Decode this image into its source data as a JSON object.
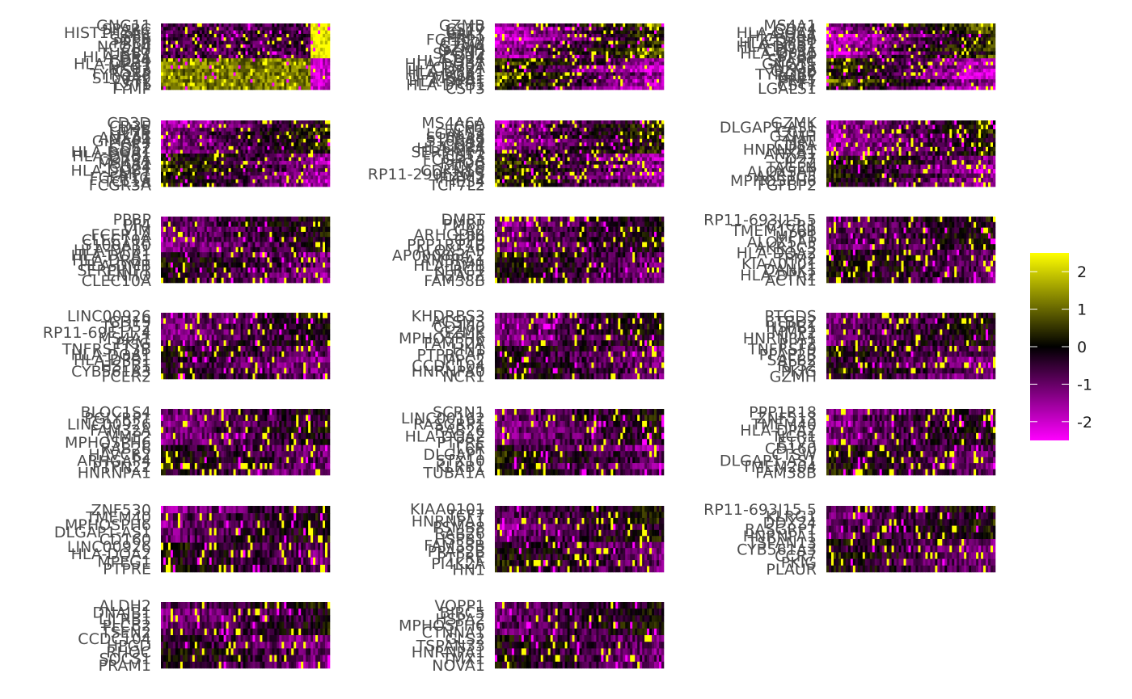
{
  "chart_data": {
    "type": "heatmap",
    "title": "",
    "xlabel": "",
    "ylabel": "",
    "color_scale": {
      "colors": [
        "#FF00FF",
        "#000000",
        "#FFFF00"
      ],
      "limits": [
        -2.5,
        2.5
      ],
      "breaks": [
        2,
        1,
        0,
        -1,
        -2
      ],
      "break_labels": [
        "2",
        "1",
        "0",
        "-1",
        "-2"
      ]
    },
    "panel_grid": {
      "rows": 7,
      "cols": 3,
      "count": 20
    },
    "panels": [
      {
        "id": "PC1",
        "genes": [
          "GNG11",
          "SPARC",
          "HIST1H2AC",
          "PF4",
          "SDPR",
          "PPBP",
          "NCOA4",
          "CLU",
          "TUBB1",
          "HLA-DRA",
          "CD74",
          "HLA-DPB1",
          "NKG7",
          "CST3",
          "TYROBP",
          "S100A9",
          "FTL",
          "LST1",
          "TYMP"
        ]
      },
      {
        "id": "PC2",
        "genes": [
          "GZMB",
          "CST7",
          "GNLY",
          "PRF1",
          "FGFBP2",
          "CTSW",
          "GZMA",
          "GZMH",
          "SPON2",
          "CD74",
          "HLA-DRA",
          "HLA-DQB1",
          "CD79A",
          "HLA-DPB1",
          "HLA-DQA1",
          "MS4A1",
          "HLA-DPA1",
          "HLA-DRB1",
          "CST3"
        ]
      },
      {
        "id": "PC3",
        "genes": [
          "MS4A1",
          "CD74",
          "HLA-DQA1",
          "HLA-DRA",
          "CD79B",
          "HLA-DPB1",
          "HLA-DQB1",
          "CD79A",
          "HLA-DPA1",
          "PPBP",
          "SPARC",
          "GNG11",
          "NKG7",
          "GZMB",
          "TYROBP",
          "GNLY",
          "PRF1",
          "CST7",
          "LGALS1"
        ]
      },
      {
        "id": "PC4",
        "genes": [
          "CD3D",
          "CD3E",
          "LDHB",
          "IL7R",
          "ANXA1",
          "GIMAP4",
          "CCR7",
          "CD52",
          "HLA-DQA1",
          "HLA-DRB1",
          "CD79A",
          "MS4A1",
          "CD74",
          "HLA-DQB1",
          "AIF1",
          "FCER1G",
          "TCL1A",
          "FCGR3A"
        ]
      },
      {
        "id": "PC5",
        "genes": [
          "MS4A6A",
          "CFD",
          "FCN1",
          "LGALS2",
          "S100A8",
          "S100A9",
          "CD14",
          "HLA-DRA",
          "SERPINF1",
          "CST3",
          "FCGR3A",
          "RHOC",
          "CKB",
          "CDKN1C",
          "RP11-290F20.3",
          "IFITM2",
          "HES4",
          "TCF7L2"
        ]
      },
      {
        "id": "PC6",
        "genes": [
          "GZMK",
          "DLGAP1-AS1",
          "CCL5",
          "GZMH",
          "MAL",
          "CD8A",
          "HNRNPA1",
          "ANXA1",
          "CD27",
          "IL32",
          "TAGLN",
          "ALOX5AP",
          "AKR1C3",
          "MPHOSPH6",
          "FGFBP2"
        ]
      },
      {
        "id": "PC7",
        "genes": [
          "PPBP",
          "PF4",
          "VIM",
          "FCER1A",
          "CLEC10A",
          "S100A10",
          "HLA-DPB1",
          "HLA-DQA1",
          "HLA-DRB1",
          "HLA-DMB",
          "SERPINF1",
          "ENHO",
          "CLEC10A"
        ]
      },
      {
        "id": "PC8",
        "genes": [
          "DMRT",
          "PMBP",
          "CA2",
          "ARHGDIB",
          "GP9",
          "PPP1R14B",
          "ALOX5AP",
          "AP000864.2",
          "AMBRA1",
          "HLA-DMB",
          "KLRG1",
          "H2AFZ",
          "FAM38B"
        ]
      },
      {
        "id": "PC9",
        "genes": [
          "RP11-693J15.5",
          "CYCR1",
          "TMEM176B",
          "MPP1",
          "ALOX5AP",
          "AKR1C3",
          "HLA-DQA2",
          "TPM2",
          "KIAA0101",
          "DANK1",
          "HLA-DPA2",
          "ACTN1"
        ]
      },
      {
        "id": "PC10",
        "genes": [
          "LINC00926",
          "CD19",
          "TPD52",
          "RP11-69E11.4",
          "MS4A1",
          "PKIG",
          "TNFRSF13B",
          "HLA-DQA1",
          "HLA-DPB1",
          "HSPB1",
          "CYB561A3",
          "FCER2"
        ]
      },
      {
        "id": "PC11",
        "genes": [
          "KHDRBS3",
          "ACSM3",
          "CD160",
          "GZMK",
          "MPHOSPH6",
          "FAM32A",
          "HN1",
          "PTPRCAP",
          "MPC2",
          "CCDC104",
          "HNRNPA0",
          "NCR1"
        ]
      },
      {
        "id": "PC12",
        "genes": [
          "PTGDS",
          "BTBD2",
          "HSPB1",
          "MMP2",
          "HNRNPA1",
          "PPT2",
          "TNFRSF9",
          "PPAP2B",
          "SAFB2",
          "RPS2",
          "PKIG",
          "GZMH"
        ]
      },
      {
        "id": "PC13",
        "genes": [
          "BLOC1S4",
          "PGLYRP1",
          "LINC00926",
          "FAM32A",
          "MMP2",
          "MPHOSPH6",
          "RAB26",
          "HAVCR2",
          "ARHGAP4",
          "PTPN22",
          "HNRNPA1"
        ]
      },
      {
        "id": "PC14",
        "genes": [
          "SCRN1",
          "LINC00162",
          "RASGRP1",
          "RAB26",
          "HLA-DQA2",
          "PTPRE",
          "IL6R",
          "DLGAP1",
          "STX10",
          "KLRB1",
          "TUBA1A"
        ]
      },
      {
        "id": "PC15",
        "genes": [
          "PPP1R18",
          "ZNF513",
          "TMEM40",
          "HLA-DPA2",
          "NCR1",
          "ETV5",
          "CD160",
          "CTSW",
          "DLGAP1-AS1",
          "TMEM204",
          "FAM38B"
        ]
      },
      {
        "id": "PC16",
        "genes": [
          "ZNF530",
          "TMEM40",
          "MPHOSPH6",
          "DLGAP1-AS1",
          "CD160",
          "LINC00926",
          "HLA-DQA2",
          "MPEG1",
          "PTPRE"
        ]
      },
      {
        "id": "PC17",
        "genes": [
          "KIAA0101",
          "TCF7",
          "HNRNPA1",
          "PSMB8",
          "RAB26",
          "HSPB1",
          "FAM38B",
          "PPAP2B",
          "PTPRE",
          "PI4K2A",
          "HN1"
        ]
      },
      {
        "id": "PC18",
        "genes": [
          "RP11-693J15.5",
          "KLRG1",
          "DDX24",
          "RASGRP1",
          "HNRNPA1",
          "TSPAN13",
          "CYB561A3",
          "CCR7",
          "PKIG",
          "PLAUR"
        ]
      },
      {
        "id": "PC19",
        "genes": [
          "ALDH2",
          "DNAJB1",
          "LILRB1",
          "PLCB2",
          "TSEN2",
          "CCDC104",
          "HPGD",
          "RHOC",
          "SOCS1",
          "PRAM1"
        ]
      },
      {
        "id": "PC20",
        "genes": [
          "VOPP1",
          "BIRC5",
          "HSPA2",
          "MPHOSPH6",
          "CTNNA1",
          "GLS2",
          "TSPAN33",
          "HNRNPA1",
          "TMX1",
          "NOVA1"
        ]
      }
    ]
  }
}
